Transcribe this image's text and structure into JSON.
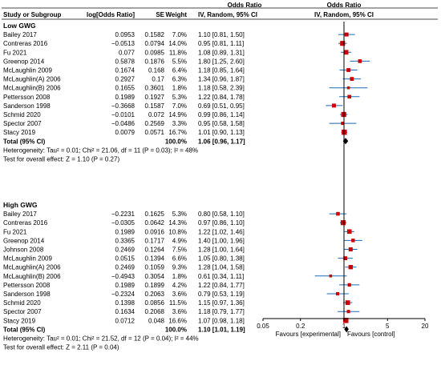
{
  "chart_data": {
    "type": "table",
    "header": {
      "col_study": "Study or Subgroup",
      "col_lor": "log[Odds Ratio]",
      "col_se": "SE",
      "col_weight": "Weight",
      "col_or_title": "Odds Ratio",
      "col_or_sub": "IV, Random, 95% CI",
      "plot_title": "Odds Ratio",
      "plot_sub": "IV, Random, 95% CI"
    },
    "groups": [
      {
        "name": "Low GWG",
        "studies": [
          {
            "study": "Bailey 2017",
            "lor": "0.0953",
            "se": "0.1582",
            "weight": "7.0%",
            "ci": "1.10 [0.81, 1.50]",
            "or": 1.1,
            "lo": 0.81,
            "hi": 1.5,
            "w": 7.0
          },
          {
            "study": "Contreras 2016",
            "lor": "−0.0513",
            "se": "0.0794",
            "weight": "14.0%",
            "ci": "0.95 [0.81, 1.11]",
            "or": 0.95,
            "lo": 0.81,
            "hi": 1.11,
            "w": 14.0
          },
          {
            "study": "Fu 2021",
            "lor": "0.077",
            "se": "0.0985",
            "weight": "11.8%",
            "ci": "1.08 [0.89, 1.31]",
            "or": 1.08,
            "lo": 0.89,
            "hi": 1.31,
            "w": 11.8
          },
          {
            "study": "Greenop 2014",
            "lor": "0.5878",
            "se": "0.1876",
            "weight": "5.5%",
            "ci": "1.80 [1.25, 2.60]",
            "or": 1.8,
            "lo": 1.25,
            "hi": 2.6,
            "w": 5.5
          },
          {
            "study": "McLaughlin 2009",
            "lor": "0.1674",
            "se": "0.168",
            "weight": "6.4%",
            "ci": "1.18 [0.85, 1.64]",
            "or": 1.18,
            "lo": 0.85,
            "hi": 1.64,
            "w": 6.4
          },
          {
            "study": "McLaughlin(A) 2006",
            "lor": "0.2927",
            "se": "0.17",
            "weight": "6.3%",
            "ci": "1.34 [0.96, 1.87]",
            "or": 1.34,
            "lo": 0.96,
            "hi": 1.87,
            "w": 6.3
          },
          {
            "study": "McLaughlin(B) 2006",
            "lor": "0.1655",
            "se": "0.3601",
            "weight": "1.8%",
            "ci": "1.18 [0.58, 2.39]",
            "or": 1.18,
            "lo": 0.58,
            "hi": 2.39,
            "w": 1.8
          },
          {
            "study": "Pettersson 2008",
            "lor": "0.1989",
            "se": "0.1927",
            "weight": "5.3%",
            "ci": "1.22 [0.84, 1.78]",
            "or": 1.22,
            "lo": 0.84,
            "hi": 1.78,
            "w": 5.3
          },
          {
            "study": "Sanderson 1998",
            "lor": "−0.3668",
            "se": "0.1587",
            "weight": "7.0%",
            "ci": "0.69 [0.51, 0.95]",
            "or": 0.69,
            "lo": 0.51,
            "hi": 0.95,
            "w": 7.0
          },
          {
            "study": "Schmid 2020",
            "lor": "−0.0101",
            "se": "0.072",
            "weight": "14.9%",
            "ci": "0.99 [0.86, 1.14]",
            "or": 0.99,
            "lo": 0.86,
            "hi": 1.14,
            "w": 14.9
          },
          {
            "study": "Spector 2007",
            "lor": "−0.0486",
            "se": "0.2569",
            "weight": "3.3%",
            "ci": "0.95 [0.58, 1.58]",
            "or": 0.95,
            "lo": 0.58,
            "hi": 1.58,
            "w": 3.3
          },
          {
            "study": "Stacy 2019",
            "lor": "0.0079",
            "se": "0.0571",
            "weight": "16.7%",
            "ci": "1.01 [0.90, 1.13]",
            "or": 1.01,
            "lo": 0.9,
            "hi": 1.13,
            "w": 16.7
          }
        ],
        "total": {
          "label": "Total (95% CI)",
          "weight": "100.0%",
          "ci": "1.06 [0.96, 1.17]",
          "or": 1.06,
          "lo": 0.96,
          "hi": 1.17
        },
        "heterogeneity": "Heterogeneity: Tau² = 0.01; Chi² = 21.06, df = 11 (P = 0.03); I² = 48%",
        "overall_test": "Test for overall effect: Z = 1.10 (P = 0.27)"
      },
      {
        "name": "High GWG",
        "studies": [
          {
            "study": "Bailey 2017",
            "lor": "−0.2231",
            "se": "0.1625",
            "weight": "5.3%",
            "ci": "0.80 [0.58, 1.10]",
            "or": 0.8,
            "lo": 0.58,
            "hi": 1.1,
            "w": 5.3
          },
          {
            "study": "Contreras 2016",
            "lor": "−0.0305",
            "se": "0.0642",
            "weight": "14.3%",
            "ci": "0.97 [0.86, 1.10]",
            "or": 0.97,
            "lo": 0.86,
            "hi": 1.1,
            "w": 14.3
          },
          {
            "study": "Fu 2021",
            "lor": "0.1989",
            "se": "0.0916",
            "weight": "10.8%",
            "ci": "1.22 [1.02, 1.46]",
            "or": 1.22,
            "lo": 1.02,
            "hi": 1.46,
            "w": 10.8
          },
          {
            "study": "Greenop 2014",
            "lor": "0.3365",
            "se": "0.1717",
            "weight": "4.9%",
            "ci": "1.40 [1.00, 1.96]",
            "or": 1.4,
            "lo": 1.0,
            "hi": 1.96,
            "w": 4.9
          },
          {
            "study": "Johnson 2008",
            "lor": "0.2469",
            "se": "0.1264",
            "weight": "7.5%",
            "ci": "1.28 [1.00, 1.64]",
            "or": 1.28,
            "lo": 1.0,
            "hi": 1.64,
            "w": 7.5
          },
          {
            "study": "McLaughlin 2009",
            "lor": "0.0515",
            "se": "0.1394",
            "weight": "6.6%",
            "ci": "1.05 [0.80, 1.38]",
            "or": 1.05,
            "lo": 0.8,
            "hi": 1.38,
            "w": 6.6
          },
          {
            "study": "McLaughlin(A) 2006",
            "lor": "0.2469",
            "se": "0.1059",
            "weight": "9.3%",
            "ci": "1.28 [1.04, 1.58]",
            "or": 1.28,
            "lo": 1.04,
            "hi": 1.58,
            "w": 9.3
          },
          {
            "study": "McLaughlin(B) 2006",
            "lor": "−0.4943",
            "se": "0.3054",
            "weight": "1.8%",
            "ci": "0.61 [0.34, 1.11]",
            "or": 0.61,
            "lo": 0.34,
            "hi": 1.11,
            "w": 1.8
          },
          {
            "study": "Pettersson 2008",
            "lor": "0.1989",
            "se": "0.1899",
            "weight": "4.2%",
            "ci": "1.22 [0.84, 1.77]",
            "or": 1.22,
            "lo": 0.84,
            "hi": 1.77,
            "w": 4.2
          },
          {
            "study": "Sanderson 1998",
            "lor": "−0.2324",
            "se": "0.2063",
            "weight": "3.6%",
            "ci": "0.79 [0.53, 1.19]",
            "or": 0.79,
            "lo": 0.53,
            "hi": 1.19,
            "w": 3.6
          },
          {
            "study": "Schmid 2020",
            "lor": "0.1398",
            "se": "0.0856",
            "weight": "11.5%",
            "ci": "1.15 [0.97, 1.36]",
            "or": 1.15,
            "lo": 0.97,
            "hi": 1.36,
            "w": 11.5
          },
          {
            "study": "Spector 2007",
            "lor": "0.1634",
            "se": "0.2068",
            "weight": "3.6%",
            "ci": "1.18 [0.79, 1.77]",
            "or": 1.18,
            "lo": 0.79,
            "hi": 1.77,
            "w": 3.6
          },
          {
            "study": "Stacy 2019",
            "lor": "0.0712",
            "se": "0.048",
            "weight": "16.6%",
            "ci": "1.07 [0.98, 1.18]",
            "or": 1.07,
            "lo": 0.98,
            "hi": 1.18,
            "w": 16.6
          }
        ],
        "total": {
          "label": "Total (95% CI)",
          "weight": "100.0%",
          "ci": "1.10 [1.01, 1.19]",
          "or": 1.1,
          "lo": 1.01,
          "hi": 1.19
        },
        "heterogeneity": "Heterogeneity: Tau² = 0.01; Chi² = 21.52, df = 12 (P = 0.04); I² = 44%",
        "overall_test": "Test for overall effect: Z = 2.11 (P = 0.04)"
      }
    ],
    "x_axis": {
      "scale": "log",
      "ticks": [
        0.05,
        0.2,
        1,
        5,
        20
      ],
      "tick_labels": [
        "0.05",
        "0.2",
        "1",
        "5",
        "20"
      ],
      "left_label": "Favours [experimental]",
      "right_label": "Favours [control]",
      "reference": 1
    },
    "colors": {
      "square": "#cc0000",
      "ci_line": "#1a6ab5",
      "diamond": "#000000",
      "rule": "#4a4a4a",
      "null_line": "#000000"
    }
  }
}
